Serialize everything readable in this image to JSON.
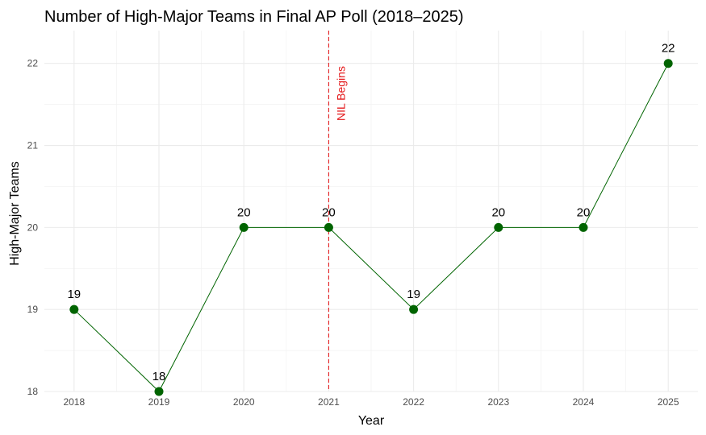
{
  "chart_data": {
    "type": "line",
    "title": "Number of High-Major Teams in Final AP Poll (2018–2025)",
    "xlabel": "Year",
    "ylabel": "High-Major Teams",
    "x": [
      2018,
      2019,
      2020,
      2021,
      2022,
      2023,
      2024,
      2025
    ],
    "x_tick_labels": [
      "2018",
      "2019",
      "2020",
      "2021",
      "2022",
      "2023",
      "2024",
      "2025"
    ],
    "series": [
      {
        "values": [
          19,
          18,
          20,
          20,
          19,
          20,
          20,
          22
        ],
        "color": "#006400"
      }
    ],
    "data_labels": [
      "19",
      "18",
      "20",
      "20",
      "19",
      "20",
      "20",
      "22"
    ],
    "ylim": [
      18,
      22.4
    ],
    "y_ticks": [
      18,
      19,
      20,
      21,
      22
    ],
    "y_tick_labels": [
      "18",
      "19",
      "20",
      "21",
      "22"
    ],
    "grid": true,
    "legend": "none",
    "reference_line": {
      "axis": "x",
      "value": 2021,
      "label": "NIL Begins",
      "color": "#e41a1c",
      "style": "dashed"
    }
  }
}
